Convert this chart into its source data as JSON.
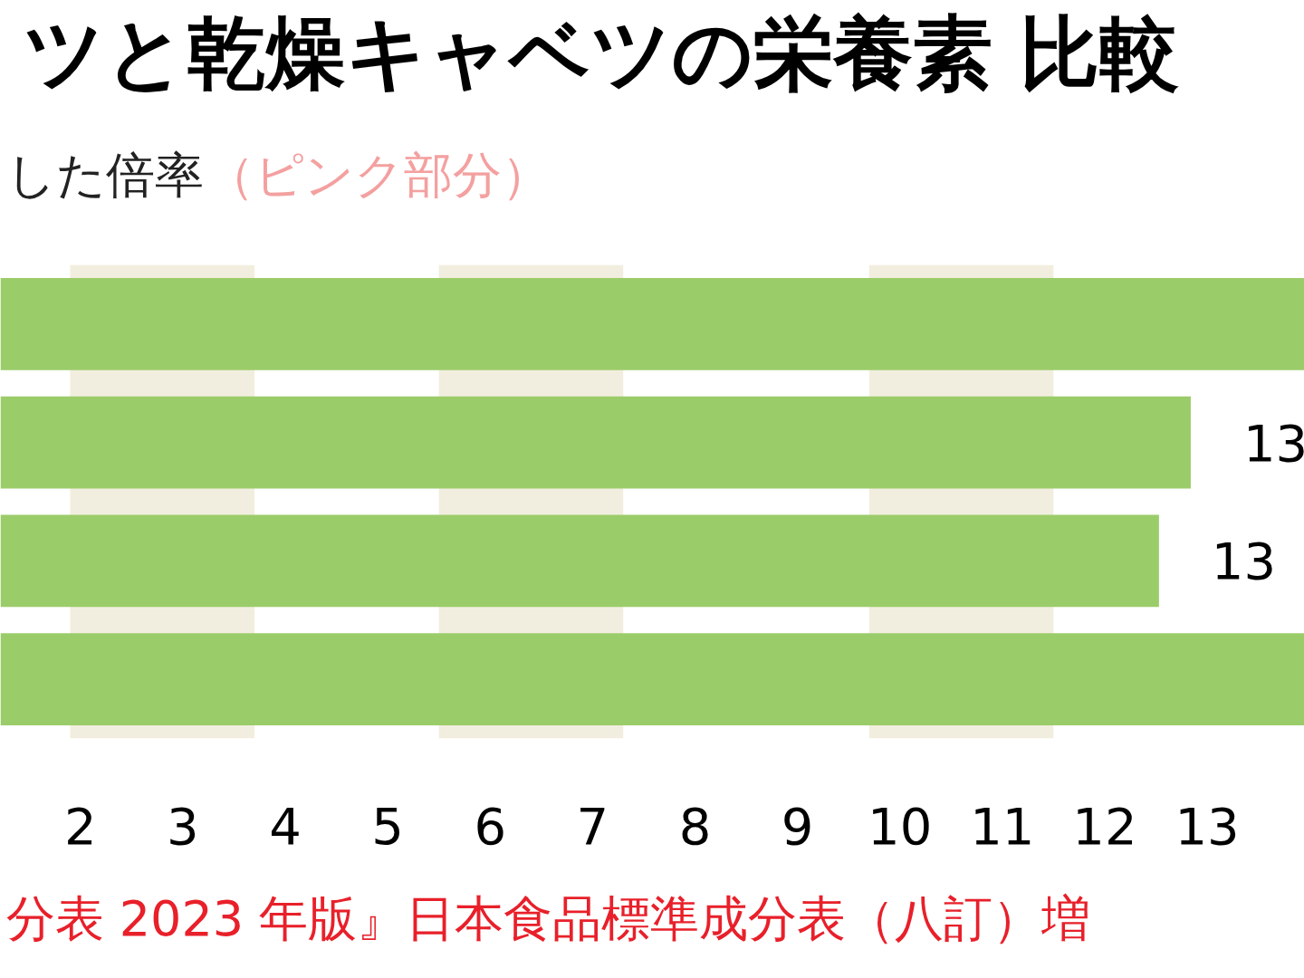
{
  "chart_data": {
    "type": "bar",
    "orientation": "horizontal",
    "title": "ツと乾燥キャベツの栄養素 比較",
    "subtitle": "した倍率",
    "annotations": [
      "（ピンク部分）",
      "分表 2023 年版』日本食品標準成分表（八訂）増"
    ],
    "categories": [
      null,
      null,
      null,
      null
    ],
    "values": [
      13.95,
      12.84,
      12.53,
      13.95
    ],
    "value_labels": [
      null,
      "13",
      "13",
      null
    ],
    "color": "#9bcc6a",
    "xlim": [
      1.22,
      13.95
    ],
    "xticks": [
      2,
      3,
      4,
      5,
      6,
      7,
      8,
      9,
      10,
      11,
      12,
      13
    ],
    "bands": [
      {
        "axis": "x",
        "from": 1.9,
        "to": 3.7,
        "color": "#f2eedf"
      },
      {
        "axis": "x",
        "from": 5.5,
        "to": 7.3,
        "color": "#f2eedf"
      },
      {
        "axis": "x",
        "from": 9.7,
        "to": 11.5,
        "color": "#f2eedf"
      }
    ],
    "grid": false
  }
}
